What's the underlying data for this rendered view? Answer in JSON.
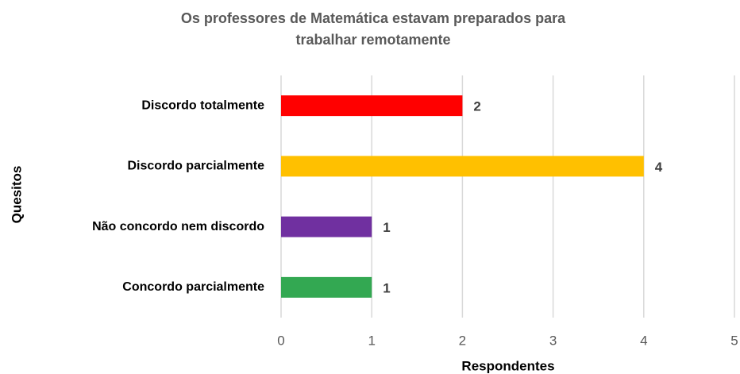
{
  "chart_data": {
    "type": "bar",
    "orientation": "horizontal",
    "title": "Os professores de Matemática estavam preparados para trabalhar remotamente",
    "categories": [
      "Discordo totalmente",
      "Discordo parcialmente",
      "Não concordo nem discordo",
      "Concordo parcialmente"
    ],
    "values": [
      2,
      4,
      1,
      1
    ],
    "colors": [
      "#ff0000",
      "#ffc000",
      "#7030a0",
      "#33a852"
    ],
    "xlabel": "Respondentes",
    "ylabel": "Quesitos",
    "xlim": [
      0,
      5
    ],
    "xticks": [
      0,
      1,
      2,
      3,
      4,
      5
    ],
    "grid": true
  }
}
